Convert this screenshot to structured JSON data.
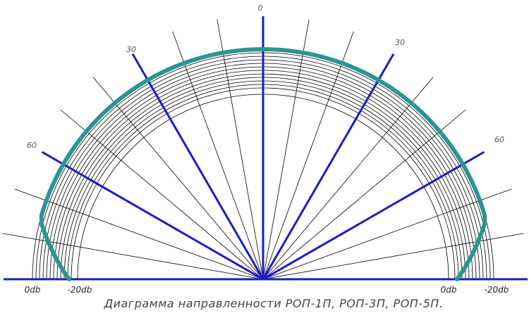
{
  "caption": "Диаграмма направленности РОП-1П, РОП-3П, РОП-5П.",
  "angle_labels": {
    "zero": "0",
    "left_30": "30",
    "right_30": "30",
    "left_60": "60",
    "right_60": "60"
  },
  "db_labels": {
    "left_outer": "0db",
    "left_inner": "-20db",
    "right_inner": "0db",
    "right_outer": "-20db"
  },
  "colors": {
    "axis_blue": "#1a1acc",
    "pattern_teal": "#2a9690",
    "grid_black": "#000000"
  }
}
